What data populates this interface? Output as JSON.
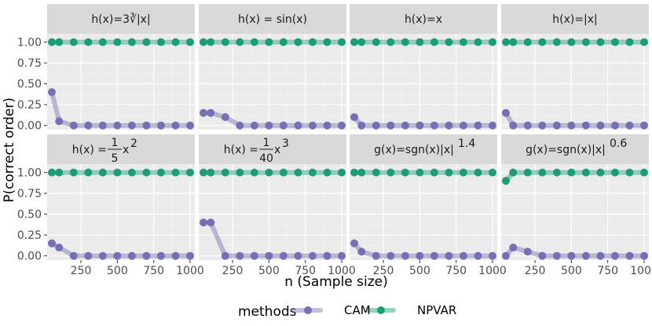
{
  "chart_data": {
    "type": "line",
    "facet_layout": "2 rows x 4 columns",
    "xlabel": "n (Sample size)",
    "ylabel": "P(correct order)",
    "xlim": [
      50,
      1000
    ],
    "ylim": [
      -0.05,
      1.1
    ],
    "x_ticks": [
      250,
      500,
      750,
      1000
    ],
    "x_tick_labels": [
      "250",
      "500",
      "750",
      "1000"
    ],
    "y_ticks": [
      0,
      0.25,
      0.5,
      0.75,
      1
    ],
    "y_tick_labels": [
      "0.00",
      "0.25",
      "0.50",
      "0.75",
      "1.00"
    ],
    "x": [
      50,
      100,
      200,
      300,
      400,
      500,
      600,
      700,
      800,
      900,
      1000
    ],
    "legend": {
      "title": "methods",
      "position": "bottom",
      "entries": [
        "CAM",
        "NPVAR"
      ]
    },
    "series_colors": {
      "CAM": "#7570b3",
      "NPVAR": "#1b9e77"
    },
    "panels": [
      {
        "key": "cbrt",
        "strip": "h(x)=3∛|x|",
        "series": [
          {
            "name": "CAM",
            "values": [
              0.4,
              0.05,
              0,
              0,
              0,
              0,
              0,
              0,
              0,
              0,
              0
            ]
          },
          {
            "name": "NPVAR",
            "values": [
              1,
              1,
              1,
              1,
              1,
              1,
              1,
              1,
              1,
              1,
              1
            ]
          }
        ]
      },
      {
        "key": "sin",
        "strip": "h(x) = sin(x)",
        "series": [
          {
            "name": "CAM",
            "values": [
              0.15,
              0.15,
              0.1,
              0,
              0,
              0,
              0,
              0,
              0,
              0,
              0
            ]
          },
          {
            "name": "NPVAR",
            "values": [
              1,
              1,
              1,
              1,
              1,
              1,
              1,
              1,
              1,
              1,
              1
            ]
          }
        ]
      },
      {
        "key": "lin",
        "strip": "h(x)=x",
        "series": [
          {
            "name": "CAM",
            "values": [
              0.1,
              0,
              0,
              0,
              0,
              0,
              0,
              0,
              0,
              0,
              0
            ]
          },
          {
            "name": "NPVAR",
            "values": [
              1,
              1,
              1,
              1,
              1,
              1,
              1,
              1,
              1,
              1,
              1
            ]
          }
        ]
      },
      {
        "key": "abs",
        "strip": "h(x)=|x|",
        "series": [
          {
            "name": "CAM",
            "values": [
              0.15,
              0,
              0,
              0,
              0,
              0,
              0,
              0,
              0,
              0,
              0
            ]
          },
          {
            "name": "NPVAR",
            "values": [
              1,
              1,
              1,
              1,
              1,
              1,
              1,
              1,
              1,
              1,
              1
            ]
          }
        ]
      },
      {
        "key": "quad",
        "strip": "h(x) = 1/5 x^2",
        "strip_parts": {
          "lhs": "h(x) =",
          "num": "1",
          "den": "5",
          "base": "x",
          "exp": "2"
        },
        "series": [
          {
            "name": "CAM",
            "values": [
              0.15,
              0.1,
              0,
              0,
              0,
              0,
              0,
              0,
              0,
              0,
              0
            ]
          },
          {
            "name": "NPVAR",
            "values": [
              1,
              1,
              1,
              1,
              1,
              1,
              1,
              1,
              1,
              1,
              1
            ]
          }
        ]
      },
      {
        "key": "cubic",
        "strip": "h(x) = 1/40 x^3",
        "strip_parts": {
          "lhs": "h(x) =",
          "num": "1",
          "den": "40",
          "base": "x",
          "exp": "3"
        },
        "series": [
          {
            "name": "CAM",
            "values": [
              0.4,
              0.4,
              0,
              0,
              0,
              0,
              0,
              0,
              0,
              0,
              0
            ]
          },
          {
            "name": "NPVAR",
            "values": [
              1,
              1,
              1,
              1,
              1,
              1,
              1,
              1,
              1,
              1,
              1
            ]
          }
        ]
      },
      {
        "key": "sgn14",
        "strip": "g(x)=sgn(x)|x|^1.4",
        "strip_parts": {
          "base": "g(x)=sgn(x)|x|",
          "exp": "1.4"
        },
        "series": [
          {
            "name": "CAM",
            "values": [
              0.15,
              0.05,
              0,
              0,
              0,
              0,
              0,
              0,
              0,
              0,
              0
            ]
          },
          {
            "name": "NPVAR",
            "values": [
              1,
              1,
              1,
              1,
              1,
              1,
              1,
              1,
              1,
              1,
              1
            ]
          }
        ]
      },
      {
        "key": "sgn06",
        "strip": "g(x)=sgn(x)|x|^0.6",
        "strip_parts": {
          "base": "g(x)=sgn(x)|x|",
          "exp": "0.6"
        },
        "series": [
          {
            "name": "CAM",
            "values": [
              0,
              0.1,
              0.05,
              0,
              0,
              0,
              0,
              0,
              0,
              0,
              0
            ]
          },
          {
            "name": "NPVAR",
            "values": [
              0.9,
              1,
              1,
              1,
              1,
              1,
              1,
              1,
              1,
              1,
              1
            ]
          }
        ]
      }
    ]
  }
}
